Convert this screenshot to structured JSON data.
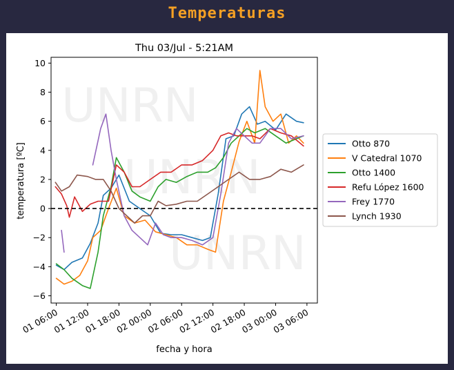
{
  "header": {
    "title": "Temperaturas"
  },
  "chart_data": {
    "type": "line",
    "title": "Thu 03/Jul - 5:21AM",
    "xlabel": "fecha y hora",
    "ylabel": "temperatura [ºC]",
    "watermark": "UNRN",
    "xlim": [
      "2025-07-01 05:00",
      "2025-07-03 08:00"
    ],
    "ylim": [
      -6.5,
      10.4
    ],
    "x_ticks": [
      "2025-07-01 06:00",
      "2025-07-01 12:00",
      "2025-07-01 18:00",
      "2025-07-02 00:00",
      "2025-07-02 06:00",
      "2025-07-02 12:00",
      "2025-07-02 18:00",
      "2025-07-03 00:00",
      "2025-07-03 06:00"
    ],
    "x_tick_labels": [
      "01 06:00",
      "01 12:00",
      "01 18:00",
      "02 00:00",
      "02 06:00",
      "02 12:00",
      "02 18:00",
      "03 00:00",
      "03 06:00"
    ],
    "y_ticks": [
      -6,
      -4,
      -2,
      0,
      2,
      4,
      6,
      8,
      10
    ],
    "y_tick_labels": [
      "−6",
      "−4",
      "−2",
      "0",
      "2",
      "4",
      "6",
      "8",
      "10"
    ],
    "reference_line": {
      "y": 0,
      "style": "dashed",
      "color": "#000000"
    },
    "grid": false,
    "legend_position": "center-right-outside",
    "series": [
      {
        "name": "Otto 870",
        "color": "#1f77b4",
        "x": [
          "2025-07-01 06:00",
          "2025-07-01 07:30",
          "2025-07-01 09:00",
          "2025-07-01 11:00",
          "2025-07-01 12:30",
          "2025-07-01 14:00",
          "2025-07-01 15:00",
          "2025-07-01 16:30",
          "2025-07-01 18:00",
          "2025-07-01 20:00",
          "2025-07-01 22:00",
          "2025-07-02 00:00",
          "2025-07-02 02:00",
          "2025-07-02 04:00",
          "2025-07-02 06:00",
          "2025-07-02 08:00",
          "2025-07-02 10:00",
          "2025-07-02 11:30",
          "2025-07-02 13:00",
          "2025-07-02 14:30",
          "2025-07-02 16:00",
          "2025-07-02 17:30",
          "2025-07-02 19:00",
          "2025-07-02 20:30",
          "2025-07-02 22:00",
          "2025-07-03 00:00",
          "2025-07-03 02:00",
          "2025-07-03 04:00",
          "2025-07-03 05:21"
        ],
        "y": [
          -3.9,
          -4.2,
          -3.7,
          -3.4,
          -2.4,
          -1.0,
          0.9,
          1.4,
          2.3,
          0.5,
          0.0,
          -0.5,
          -1.7,
          -1.8,
          -1.8,
          -2.0,
          -2.2,
          -2.0,
          1.0,
          4.8,
          5.0,
          6.5,
          7.0,
          5.8,
          6.0,
          5.4,
          6.5,
          6.0,
          5.9
        ]
      },
      {
        "name": "V Catedral 1070",
        "color": "#ff7f0e",
        "x": [
          "2025-07-01 06:00",
          "2025-07-01 07:30",
          "2025-07-01 09:00",
          "2025-07-01 10:30",
          "2025-07-01 12:00",
          "2025-07-01 13:00",
          "2025-07-01 14:30",
          "2025-07-01 16:00",
          "2025-07-01 17:30",
          "2025-07-01 19:00",
          "2025-07-01 21:00",
          "2025-07-01 23:00",
          "2025-07-02 01:00",
          "2025-07-02 03:00",
          "2025-07-02 05:00",
          "2025-07-02 07:00",
          "2025-07-02 09:00",
          "2025-07-02 11:00",
          "2025-07-02 12:30",
          "2025-07-02 14:00",
          "2025-07-02 15:30",
          "2025-07-02 17:00",
          "2025-07-02 18:30",
          "2025-07-02 20:00",
          "2025-07-02 21:00",
          "2025-07-02 22:00",
          "2025-07-02 23:30",
          "2025-07-03 01:00",
          "2025-07-03 02:30",
          "2025-07-03 04:00",
          "2025-07-03 05:21"
        ],
        "y": [
          -4.8,
          -5.2,
          -5.0,
          -4.6,
          -3.6,
          -2.0,
          -1.5,
          0.0,
          1.4,
          -0.5,
          -1.0,
          -0.8,
          -1.6,
          -1.8,
          -2.0,
          -2.5,
          -2.5,
          -2.8,
          -3.0,
          0.5,
          2.5,
          4.6,
          6.0,
          4.5,
          9.5,
          7.0,
          6.0,
          6.5,
          4.5,
          5.0,
          4.5
        ]
      },
      {
        "name": "Otto 1400",
        "color": "#2ca02c",
        "x": [
          "2025-07-01 06:00",
          "2025-07-01 07:30",
          "2025-07-01 09:00",
          "2025-07-01 11:00",
          "2025-07-01 12:30",
          "2025-07-01 14:00",
          "2025-07-01 15:00",
          "2025-07-01 16:30",
          "2025-07-01 17:30",
          "2025-07-01 19:00",
          "2025-07-01 20:30",
          "2025-07-01 22:00",
          "2025-07-02 00:00",
          "2025-07-02 01:30",
          "2025-07-02 03:00",
          "2025-07-02 05:00",
          "2025-07-02 07:00",
          "2025-07-02 09:00",
          "2025-07-02 11:00",
          "2025-07-02 12:30",
          "2025-07-02 14:00",
          "2025-07-02 15:30",
          "2025-07-02 17:00",
          "2025-07-02 18:30",
          "2025-07-02 20:00",
          "2025-07-02 22:00",
          "2025-07-03 00:00",
          "2025-07-03 02:00",
          "2025-07-03 04:00",
          "2025-07-03 05:21"
        ],
        "y": [
          -3.8,
          -4.2,
          -4.8,
          -5.3,
          -5.5,
          -3.0,
          -0.5,
          1.5,
          3.5,
          2.5,
          1.2,
          0.8,
          0.5,
          1.5,
          2.0,
          1.8,
          2.2,
          2.5,
          2.5,
          2.8,
          3.5,
          4.5,
          5.0,
          5.5,
          5.2,
          5.5,
          5.0,
          4.5,
          4.8,
          5.0
        ]
      },
      {
        "name": "Refu López 1600",
        "color": "#d62728",
        "x": [
          "2025-07-01 05:50",
          "2025-07-01 07:00",
          "2025-07-01 08:00",
          "2025-07-01 08:30",
          "2025-07-01 09:30",
          "2025-07-01 11:00",
          "2025-07-01 12:30",
          "2025-07-01 14:00",
          "2025-07-01 16:00",
          "2025-07-01 17:30",
          "2025-07-01 19:00",
          "2025-07-01 20:30",
          "2025-07-01 22:00",
          "2025-07-02 00:00",
          "2025-07-02 02:00",
          "2025-07-02 04:00",
          "2025-07-02 06:00",
          "2025-07-02 08:00",
          "2025-07-02 10:00",
          "2025-07-02 12:00",
          "2025-07-02 13:30",
          "2025-07-02 15:00",
          "2025-07-02 16:30",
          "2025-07-02 18:00",
          "2025-07-02 19:30",
          "2025-07-02 21:00",
          "2025-07-02 23:00",
          "2025-07-03 01:00",
          "2025-07-03 03:00",
          "2025-07-03 05:21"
        ],
        "y": [
          1.5,
          1.0,
          0.2,
          -0.6,
          0.8,
          -0.2,
          0.3,
          0.5,
          0.5,
          3.0,
          2.5,
          1.5,
          1.5,
          2.0,
          2.5,
          2.5,
          3.0,
          3.0,
          3.3,
          4.0,
          5.0,
          5.2,
          5.0,
          5.0,
          5.0,
          4.8,
          5.5,
          5.2,
          5.0,
          4.3
        ]
      },
      {
        "name": "Frey 1770",
        "color": "#9467bd",
        "x": [
          "2025-07-01 07:00",
          "2025-07-01 07:30",
          "2025-07-01 09:00",
          "2025-07-01 11:00",
          "2025-07-01 13:00",
          "2025-07-01 14:30",
          "2025-07-01 15:30",
          "2025-07-01 16:30",
          "2025-07-01 17:30",
          "2025-07-01 19:00",
          "2025-07-01 20:30",
          "2025-07-01 22:00",
          "2025-07-01 23:30",
          "2025-07-02 01:00",
          "2025-07-02 02:30",
          "2025-07-02 04:00",
          "2025-07-02 06:00",
          "2025-07-02 08:00",
          "2025-07-02 10:00",
          "2025-07-02 12:00",
          "2025-07-02 13:30",
          "2025-07-02 15:00",
          "2025-07-02 16:30",
          "2025-07-02 18:00",
          "2025-07-02 19:30",
          "2025-07-02 21:00",
          "2025-07-02 23:00",
          "2025-07-03 01:00",
          "2025-07-03 03:00",
          "2025-07-03 05:21"
        ],
        "y": [
          -1.5,
          -3.0,
          null,
          null,
          3.0,
          5.5,
          6.5,
          4.0,
          2.0,
          -0.5,
          -1.5,
          -2.0,
          -2.5,
          -1.0,
          -1.8,
          -2.0,
          -2.0,
          -2.2,
          -2.5,
          -2.0,
          1.0,
          4.5,
          5.5,
          5.0,
          4.5,
          4.5,
          5.5,
          5.5,
          4.8,
          5.0
        ]
      },
      {
        "name": "Lynch 1930",
        "color": "#8c564b",
        "x": [
          "2025-07-01 05:50",
          "2025-07-01 07:00",
          "2025-07-01 08:30",
          "2025-07-01 10:00",
          "2025-07-01 12:00",
          "2025-07-01 13:30",
          "2025-07-01 15:00",
          "2025-07-01 16:30",
          "2025-07-01 18:00",
          "2025-07-01 19:30",
          "2025-07-01 21:00",
          "2025-07-01 22:30",
          "2025-07-02 00:00",
          "2025-07-02 01:30",
          "2025-07-02 03:00",
          "2025-07-02 05:00",
          "2025-07-02 07:00",
          "2025-07-02 09:00",
          "2025-07-02 11:00",
          "2025-07-02 13:00",
          "2025-07-02 15:00",
          "2025-07-02 17:00",
          "2025-07-02 19:00",
          "2025-07-02 21:00",
          "2025-07-02 23:00",
          "2025-07-03 01:00",
          "2025-07-03 03:00",
          "2025-07-03 05:21"
        ],
        "y": [
          1.8,
          1.2,
          1.5,
          2.3,
          2.2,
          2.0,
          2.0,
          1.2,
          0.0,
          -0.5,
          -1.0,
          -0.5,
          -0.5,
          0.5,
          0.2,
          0.3,
          0.5,
          0.5,
          1.0,
          1.5,
          2.0,
          2.5,
          2.0,
          2.0,
          2.2,
          2.7,
          2.5,
          3.0
        ]
      }
    ]
  }
}
